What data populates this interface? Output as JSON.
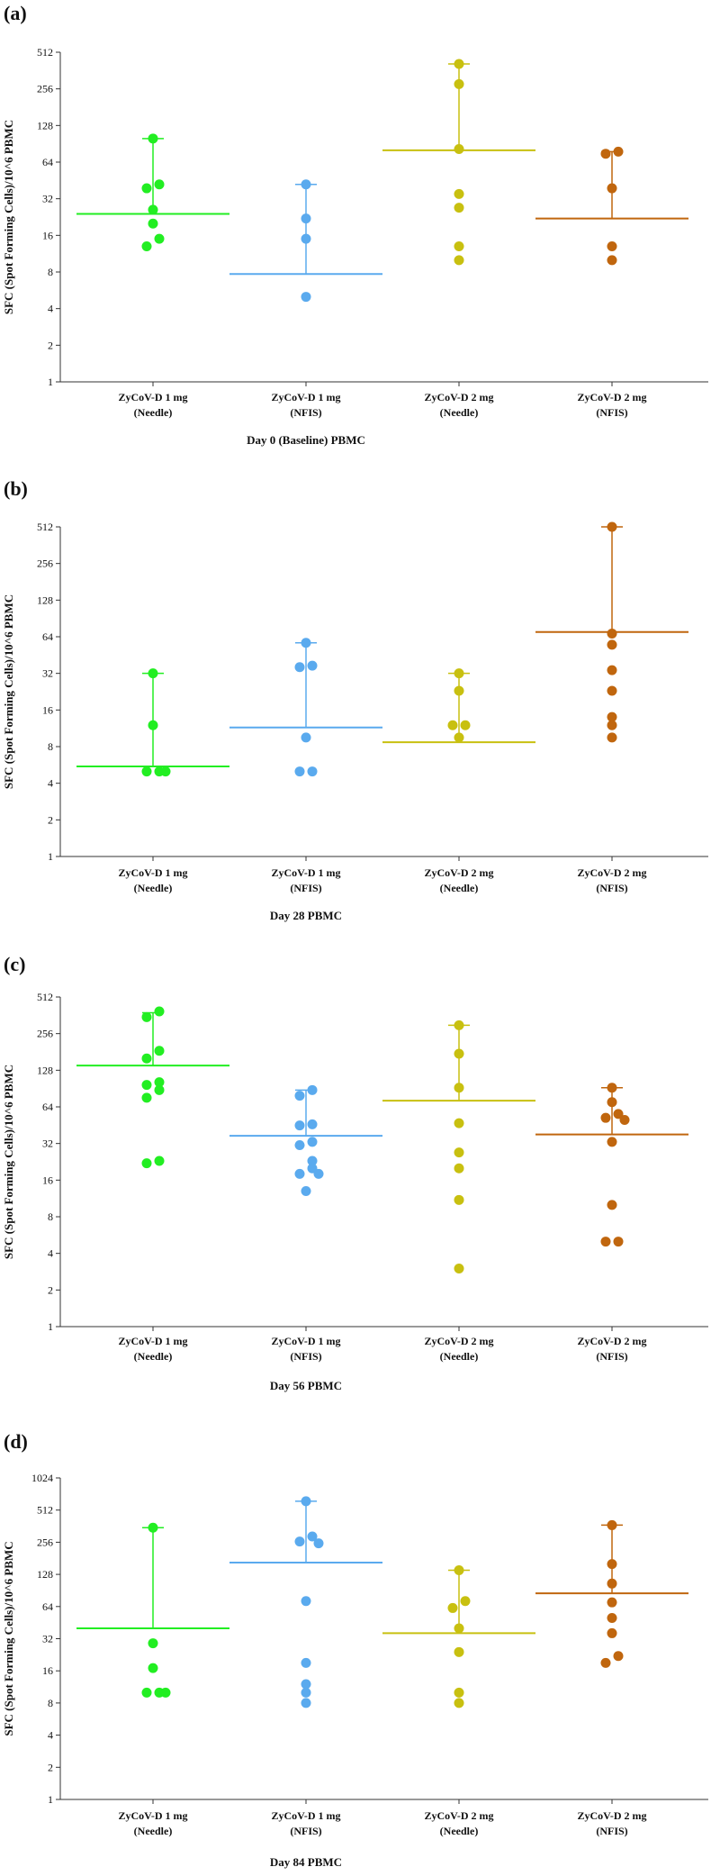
{
  "chart_data": [
    {
      "type": "scatter",
      "panel_label": "(a)",
      "xlabel": "Day 0 (Baseline) PBMC",
      "ylabel": "SFC (Spot Forming Cells)/10^6 PBMC",
      "yscale": "log2",
      "ylim": [
        1,
        512
      ],
      "yticks": [
        "1",
        "2",
        "4",
        "8",
        "16",
        "32",
        "64",
        "128",
        "256",
        "512"
      ],
      "groups": [
        {
          "label": [
            "ZyCoV-D 1 mg",
            "(Needle)"
          ],
          "color": "#22ee22",
          "median": 24,
          "whisker_top": 100,
          "points": [
            100,
            42,
            39,
            26,
            20,
            15,
            13
          ]
        },
        {
          "label": [
            "ZyCoV-D 1 mg",
            "(NFIS)"
          ],
          "color": "#5aaaee",
          "median": 7.7,
          "whisker_top": 42,
          "points": [
            42,
            22,
            15,
            5
          ]
        },
        {
          "label": [
            "ZyCoV-D 2 mg",
            "(Needle)"
          ],
          "color": "#c8c010",
          "median": 80,
          "whisker_top": 410,
          "points": [
            410,
            280,
            82,
            35,
            27,
            13,
            10
          ]
        },
        {
          "label": [
            "ZyCoV-D 2 mg",
            "(NFIS)"
          ],
          "color": "#c0660e",
          "median": 22,
          "whisker_top": 78,
          "points": [
            78,
            75,
            39,
            13,
            10
          ]
        }
      ]
    },
    {
      "type": "scatter",
      "panel_label": "(b)",
      "xlabel": "Day 28 PBMC",
      "ylabel": "SFC (Spot Forming Cells)/10^6 PBMC",
      "yscale": "log2",
      "ylim": [
        1,
        512
      ],
      "yticks": [
        "1",
        "2",
        "4",
        "8",
        "16",
        "32",
        "64",
        "128",
        "256",
        "512"
      ],
      "groups": [
        {
          "label": [
            "ZyCoV-D 1 mg",
            "(Needle)"
          ],
          "color": "#22ee22",
          "median": 5.5,
          "whisker_top": 32,
          "points": [
            32,
            12,
            5,
            5,
            5
          ]
        },
        {
          "label": [
            "ZyCoV-D 1 mg",
            "(NFIS)"
          ],
          "color": "#5aaaee",
          "median": 11.5,
          "whisker_top": 57,
          "points": [
            57,
            37,
            36,
            9.5,
            5,
            5
          ]
        },
        {
          "label": [
            "ZyCoV-D 2 mg",
            "(Needle)"
          ],
          "color": "#c8c010",
          "median": 8.7,
          "whisker_top": 32,
          "points": [
            32,
            23,
            12,
            12,
            9.5
          ]
        },
        {
          "label": [
            "ZyCoV-D 2 mg",
            "(NFIS)"
          ],
          "color": "#c0660e",
          "median": 70,
          "whisker_top": 512,
          "points": [
            512,
            68,
            55,
            34,
            23,
            14,
            12,
            9.5
          ]
        }
      ]
    },
    {
      "type": "scatter",
      "panel_label": "(c)",
      "xlabel": "Day 56 PBMC",
      "ylabel": "SFC (Spot Forming Cells)/10^6 PBMC",
      "yscale": "log2",
      "ylim": [
        1,
        512
      ],
      "yticks": [
        "1",
        "2",
        "4",
        "8",
        "16",
        "32",
        "64",
        "128",
        "256",
        "512"
      ],
      "groups": [
        {
          "label": [
            "ZyCoV-D 1 mg",
            "(Needle)"
          ],
          "color": "#22ee22",
          "median": 140,
          "whisker_top": 380,
          "points": [
            390,
            350,
            185,
            160,
            102,
            97,
            88,
            76,
            23,
            22
          ]
        },
        {
          "label": [
            "ZyCoV-D 1 mg",
            "(NFIS)"
          ],
          "color": "#5aaaee",
          "median": 37,
          "whisker_top": 88,
          "points": [
            88,
            79,
            46,
            45,
            33,
            31,
            23,
            20,
            18,
            18,
            13
          ]
        },
        {
          "label": [
            "ZyCoV-D 2 mg",
            "(Needle)"
          ],
          "color": "#c8c010",
          "median": 72,
          "whisker_top": 300,
          "points": [
            300,
            175,
            92,
            47,
            27,
            20,
            11,
            3
          ]
        },
        {
          "label": [
            "ZyCoV-D 2 mg",
            "(NFIS)"
          ],
          "color": "#c0660e",
          "median": 38,
          "whisker_top": 92,
          "points": [
            92,
            70,
            56,
            52,
            50,
            33,
            10,
            5,
            5
          ]
        }
      ]
    },
    {
      "type": "scatter",
      "panel_label": "(d)",
      "xlabel": "Day 84 PBMC",
      "ylabel": "SFC (Spot Forming Cells)/10^6 PBMC",
      "yscale": "log2",
      "ylim": [
        1,
        1024
      ],
      "yticks": [
        "1",
        "2",
        "4",
        "8",
        "16",
        "32",
        "64",
        "128",
        "256",
        "512",
        "1024"
      ],
      "groups": [
        {
          "label": [
            "ZyCoV-D 1 mg",
            "(Needle)"
          ],
          "color": "#22ee22",
          "median": 40,
          "whisker_top": 350,
          "points": [
            350,
            29,
            17,
            10,
            10,
            10
          ]
        },
        {
          "label": [
            "ZyCoV-D 1 mg",
            "(NFIS)"
          ],
          "color": "#5aaaee",
          "median": 165,
          "whisker_top": 620,
          "points": [
            620,
            290,
            260,
            250,
            72,
            19,
            12,
            10,
            8
          ]
        },
        {
          "label": [
            "ZyCoV-D 2 mg",
            "(Needle)"
          ],
          "color": "#c8c010",
          "median": 36,
          "whisker_top": 140,
          "points": [
            140,
            72,
            62,
            40,
            24,
            10,
            8
          ]
        },
        {
          "label": [
            "ZyCoV-D 2 mg",
            "(NFIS)"
          ],
          "color": "#c0660e",
          "median": 85,
          "whisker_top": 370,
          "points": [
            370,
            160,
            105,
            70,
            50,
            36,
            22,
            19
          ]
        }
      ]
    }
  ]
}
